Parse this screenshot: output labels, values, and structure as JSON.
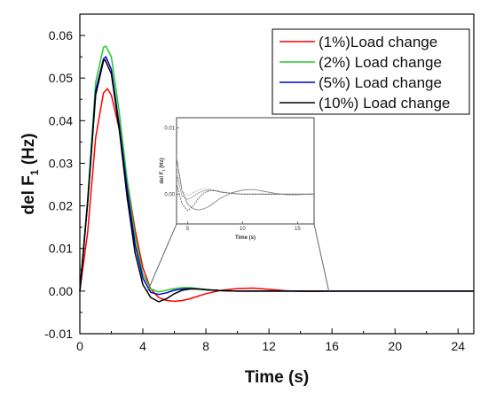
{
  "chart_data": {
    "type": "line",
    "title": "",
    "xlabel": "Time (s)",
    "ylabel": "del F",
    "ylabel_sub": "1",
    "ylabel_unit": " (Hz)",
    "xlim": [
      0,
      25
    ],
    "ylim": [
      -0.01,
      0.065
    ],
    "xticks": [
      0,
      4,
      8,
      12,
      16,
      20,
      24
    ],
    "yticks": [
      -0.01,
      0.0,
      0.01,
      0.02,
      0.03,
      0.04,
      0.05,
      0.06
    ],
    "ytick_labels": [
      "-0.01",
      "0.00",
      "0.01",
      "0.02",
      "0.03",
      "0.04",
      "0.05",
      "0.06"
    ],
    "grid": false,
    "legend_position": "top-right",
    "series": [
      {
        "name": "(1%)Load change",
        "color": "#ff0000",
        "x": [
          0,
          0.5,
          1.0,
          1.5,
          1.75,
          2.0,
          2.5,
          3.0,
          3.5,
          4.0,
          4.5,
          5.0,
          5.5,
          6.0,
          6.5,
          7.0,
          7.5,
          8.0,
          9.0,
          10.0,
          11.0,
          12.0,
          13.0,
          14.0,
          15.0,
          16.0,
          18.0,
          20.0,
          25.0
        ],
        "y": [
          0,
          0.014,
          0.036,
          0.0465,
          0.0475,
          0.046,
          0.038,
          0.026,
          0.0145,
          0.0055,
          0.0005,
          -0.0015,
          -0.0022,
          -0.0024,
          -0.0022,
          -0.0018,
          -0.0012,
          -0.0006,
          0.0002,
          0.0006,
          0.0007,
          0.0004,
          0.0001,
          -0.0001,
          -0.0001,
          0.0,
          0.0,
          0.0,
          0.0
        ]
      },
      {
        "name": "(2%) Load change",
        "color": "#22cc22",
        "x": [
          0,
          0.5,
          1.0,
          1.5,
          1.65,
          2.0,
          2.5,
          3.0,
          3.5,
          4.0,
          4.5,
          5.0,
          5.5,
          6.0,
          6.5,
          7.0,
          7.5,
          8.0,
          9.0,
          10.0,
          11.0,
          12.0,
          14.0,
          16.0,
          20.0,
          25.0
        ],
        "y": [
          0,
          0.022,
          0.049,
          0.0572,
          0.0575,
          0.055,
          0.042,
          0.026,
          0.013,
          0.004,
          0.0005,
          -0.0002,
          0.0002,
          0.0006,
          0.0008,
          0.0008,
          0.0006,
          0.0004,
          0.0001,
          0.0,
          0.0,
          0.0,
          0.0,
          0.0,
          0.0,
          0.0
        ]
      },
      {
        "name": "(5%) Load change",
        "color": "#0000cc",
        "x": [
          0,
          0.5,
          1.0,
          1.5,
          1.65,
          2.0,
          2.5,
          3.0,
          3.5,
          4.0,
          4.5,
          5.0,
          5.5,
          6.0,
          6.5,
          7.0,
          7.5,
          8.0,
          9.0,
          10.0,
          11.0,
          12.0,
          14.0,
          16.0,
          20.0,
          25.0
        ],
        "y": [
          0,
          0.021,
          0.047,
          0.0545,
          0.055,
          0.052,
          0.039,
          0.024,
          0.011,
          0.003,
          -0.0003,
          -0.0008,
          -0.0004,
          0.0002,
          0.0005,
          0.0006,
          0.0005,
          0.0003,
          0.0001,
          0.0,
          0.0,
          0.0,
          0.0,
          0.0,
          0.0,
          0.0
        ]
      },
      {
        "name": "(10%) Load change",
        "color": "#000000",
        "x": [
          0,
          0.5,
          1.0,
          1.5,
          1.6,
          2.0,
          2.5,
          3.0,
          3.5,
          4.0,
          4.5,
          5.0,
          5.5,
          6.0,
          6.5,
          7.0,
          7.5,
          8.0,
          9.0,
          10.0,
          11.0,
          12.0,
          14.0,
          16.0,
          20.0,
          25.0
        ],
        "y": [
          0,
          0.021,
          0.046,
          0.054,
          0.0543,
          0.051,
          0.038,
          0.022,
          0.009,
          0.0015,
          -0.0015,
          -0.0025,
          -0.0018,
          -0.0006,
          0.0002,
          0.0005,
          0.0005,
          0.0003,
          0.0001,
          0.0,
          0.0,
          0.0,
          0.0,
          0.0,
          0.0,
          0.0
        ]
      }
    ],
    "inset": {
      "xlabel": "Time (s)",
      "ylabel": "del F",
      "ylabel_sub": "1",
      "ylabel_unit": " (Hz)",
      "xlim": [
        4,
        16.5
      ],
      "ylim": [
        -0.0045,
        0.0115
      ],
      "xticks": [
        5,
        10,
        15
      ],
      "yticks": [
        0.0,
        0.01
      ],
      "ytick_labels": [
        "0.00",
        "0.01"
      ],
      "zoom_source": {
        "x_from": 4.3,
        "x_to": 15.8,
        "y": 0.0
      }
    }
  }
}
